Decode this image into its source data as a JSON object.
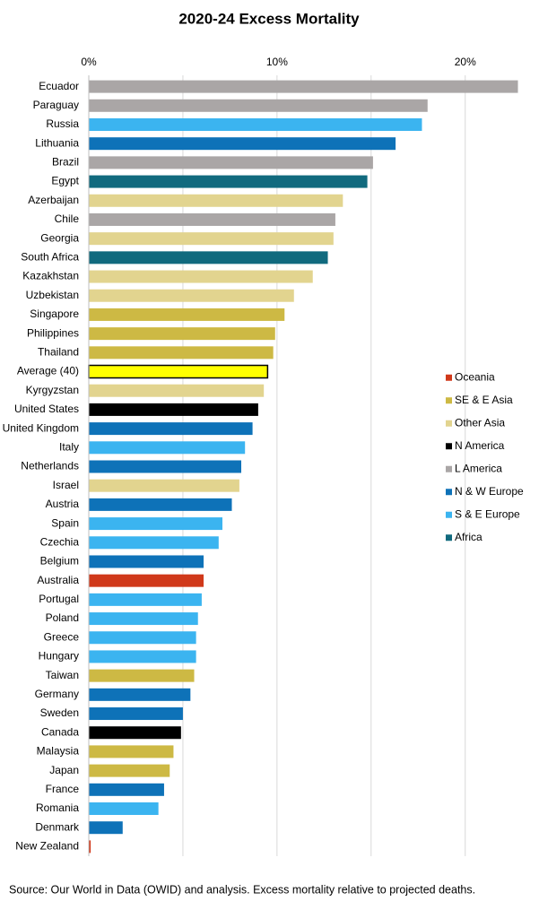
{
  "chart_data": {
    "type": "barh",
    "title": "2020-24 Excess Mortality",
    "categories": [
      "Ecuador",
      "Paraguay",
      "Russia",
      "Lithuania",
      "Brazil",
      "Egypt",
      "Azerbaijan",
      "Chile",
      "Georgia",
      "South Africa",
      "Kazakhstan",
      "Uzbekistan",
      "Singapore",
      "Philippines",
      "Thailand",
      "Average (40)",
      "Kyrgyzstan",
      "United States",
      "United Kingdom",
      "Italy",
      "Netherlands",
      "Israel",
      "Austria",
      "Spain",
      "Czechia",
      "Belgium",
      "Australia",
      "Portugal",
      "Poland",
      "Greece",
      "Hungary",
      "Taiwan",
      "Germany",
      "Sweden",
      "Canada",
      "Malaysia",
      "Japan",
      "France",
      "Romania",
      "Denmark",
      "New Zealand"
    ],
    "series": [
      {
        "name": "Oceania",
        "color": "#d0391a",
        "values": [
          null,
          null,
          null,
          null,
          null,
          null,
          null,
          null,
          null,
          null,
          null,
          null,
          null,
          null,
          null,
          null,
          null,
          null,
          null,
          null,
          null,
          null,
          null,
          null,
          null,
          null,
          6.1,
          null,
          null,
          null,
          null,
          null,
          null,
          null,
          null,
          null,
          null,
          null,
          null,
          null,
          0.1
        ]
      },
      {
        "name": "SE & E Asia",
        "color": "#cdb944",
        "values": [
          null,
          null,
          null,
          null,
          null,
          null,
          null,
          null,
          null,
          null,
          null,
          null,
          10.4,
          9.9,
          9.8,
          null,
          null,
          null,
          null,
          null,
          null,
          null,
          null,
          null,
          null,
          null,
          null,
          null,
          null,
          null,
          null,
          5.6,
          null,
          null,
          null,
          4.5,
          4.3,
          null,
          null,
          null,
          null
        ]
      },
      {
        "name": "Other Asia",
        "color": "#e2d48f",
        "values": [
          null,
          null,
          null,
          null,
          null,
          null,
          13.5,
          null,
          13.0,
          null,
          11.9,
          10.9,
          null,
          null,
          null,
          null,
          9.3,
          null,
          null,
          null,
          null,
          8.0,
          null,
          null,
          null,
          null,
          null,
          null,
          null,
          null,
          null,
          null,
          null,
          null,
          null,
          null,
          null,
          null,
          null,
          null,
          null
        ]
      },
      {
        "name": "N America",
        "color": "#000000",
        "values": [
          null,
          null,
          null,
          null,
          null,
          null,
          null,
          null,
          null,
          null,
          null,
          null,
          null,
          null,
          null,
          null,
          null,
          9.0,
          null,
          null,
          null,
          null,
          null,
          null,
          null,
          null,
          null,
          null,
          null,
          null,
          null,
          null,
          null,
          null,
          4.9,
          null,
          null,
          null,
          null,
          null,
          null
        ]
      },
      {
        "name": "L America",
        "color": "#aaa6a6",
        "values": [
          22.8,
          18.0,
          null,
          null,
          15.1,
          null,
          null,
          13.1,
          null,
          null,
          null,
          null,
          null,
          null,
          null,
          null,
          null,
          null,
          null,
          null,
          null,
          null,
          null,
          null,
          null,
          null,
          null,
          null,
          null,
          null,
          null,
          null,
          null,
          null,
          null,
          null,
          null,
          null,
          null,
          null,
          null
        ]
      },
      {
        "name": "N & W Europe",
        "color": "#0e72b8",
        "values": [
          null,
          null,
          null,
          16.3,
          null,
          null,
          null,
          null,
          null,
          null,
          null,
          null,
          null,
          null,
          null,
          null,
          null,
          null,
          8.7,
          null,
          8.1,
          null,
          7.6,
          null,
          null,
          6.1,
          null,
          null,
          null,
          null,
          null,
          null,
          5.4,
          5.0,
          null,
          null,
          null,
          4.0,
          null,
          1.8,
          null
        ]
      },
      {
        "name": "S & E Europe",
        "color": "#3bb4f0",
        "values": [
          null,
          null,
          17.7,
          null,
          null,
          null,
          null,
          null,
          null,
          null,
          null,
          null,
          null,
          null,
          null,
          null,
          null,
          null,
          null,
          8.3,
          null,
          null,
          null,
          7.1,
          6.9,
          null,
          null,
          6.0,
          5.8,
          5.7,
          5.7,
          null,
          null,
          null,
          null,
          null,
          null,
          null,
          3.7,
          null,
          null
        ]
      },
      {
        "name": "Africa",
        "color": "#116a7e",
        "values": [
          null,
          null,
          null,
          null,
          null,
          14.8,
          null,
          null,
          null,
          12.7,
          null,
          null,
          null,
          null,
          null,
          null,
          null,
          null,
          null,
          null,
          null,
          null,
          null,
          null,
          null,
          null,
          null,
          null,
          null,
          null,
          null,
          null,
          null,
          null,
          null,
          null,
          null,
          null,
          null,
          null,
          null
        ]
      },
      {
        "color": "#ffff00",
        "edgecolor": "#000000",
        "values": [
          null,
          null,
          null,
          null,
          null,
          null,
          null,
          null,
          null,
          null,
          null,
          null,
          null,
          null,
          null,
          9.5,
          null,
          null,
          null,
          null,
          null,
          null,
          null,
          null,
          null,
          null,
          null,
          null,
          null,
          null,
          null,
          null,
          null,
          null,
          null,
          null,
          null,
          null,
          null,
          null,
          null
        ]
      }
    ],
    "xlim": [
      0,
      23.3
    ],
    "xticks": [
      {
        "value": 0,
        "label": "0%"
      },
      {
        "value": 10,
        "label": "10%"
      },
      {
        "value": 20,
        "label": "20%"
      }
    ],
    "xgrid_minor": [
      5,
      15
    ],
    "grid": true,
    "legend": "center right",
    "source": "Source: Our World in Data (OWID) and analysis.  Excess mortality relative to projected deaths."
  }
}
